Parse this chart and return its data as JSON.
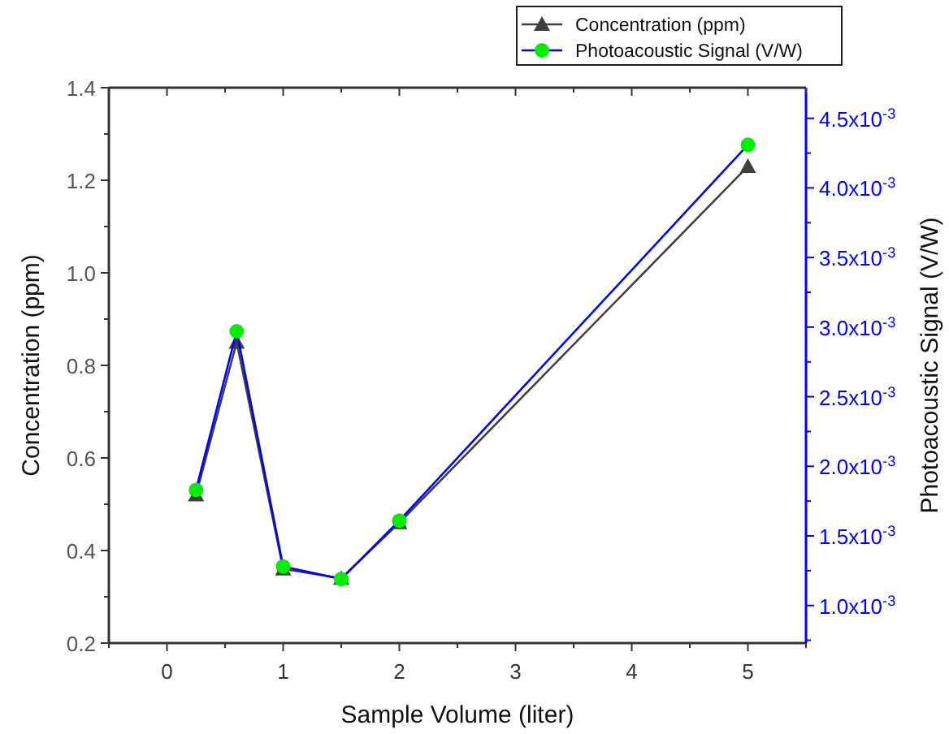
{
  "chart_data": {
    "type": "line",
    "xlabel": "Sample Volume (liter)",
    "ylabel": "Concentration (ppm)",
    "y2label": "Photoacoustic Signal (V/W)",
    "x": [
      0.25,
      0.6,
      1,
      1.5,
      2,
      5
    ],
    "series": [
      {
        "name": "Concentration (ppm)",
        "color": "#404040",
        "marker": "triangle",
        "values": [
          0.52,
          0.85,
          0.36,
          0.34,
          0.46,
          1.23
        ]
      },
      {
        "name": "Photoacoustic Signal (V/W)",
        "color": "#0000ff",
        "colors": [
          "#00ee00",
          "#00ee00",
          "#00ee00",
          "#00ee00",
          "#00ee00",
          "#00ee00"
        ],
        "marker": "circle",
        "axis": "y2",
        "values": [
          0.00183,
          0.00297,
          0.00128,
          0.00119,
          0.00161,
          0.00431
        ]
      }
    ],
    "xlim": [
      -0.5,
      5.5
    ],
    "xticks": [
      {
        "value": -0.5,
        "label": null
      },
      0,
      {
        "value": 0.5,
        "label": null
      },
      1,
      {
        "value": 1.5,
        "label": null
      },
      2,
      {
        "value": 2.5,
        "label": null
      },
      3,
      {
        "value": 3.5,
        "label": null
      },
      4,
      {
        "value": 4.5,
        "label": null
      },
      5,
      {
        "value": 5.5,
        "label": null
      }
    ],
    "ylim": [
      0.2,
      1.4
    ],
    "yticks": [
      {
        "value": 0.2,
        "label": "0.2"
      },
      {
        "value": 0.3,
        "label": null
      },
      {
        "value": 0.4,
        "label": "0.4"
      },
      {
        "value": 0.5,
        "label": null
      },
      {
        "value": 0.6,
        "label": "0.6"
      },
      {
        "value": 0.7,
        "label": null
      },
      {
        "value": 0.8,
        "label": "0.8"
      },
      {
        "value": 0.9,
        "label": null
      },
      {
        "value": 1.0,
        "label": "1.0"
      },
      {
        "value": 1.1,
        "label": null
      },
      {
        "value": 1.2,
        "label": "1.2"
      },
      {
        "value": 1.3,
        "label": null
      },
      {
        "value": 1.4,
        "label": "1.4"
      }
    ],
    "y2lim": [
      0.00073,
      0.00472
    ],
    "y2ticks": [
      {
        "value": 0.00075,
        "label": null
      },
      {
        "value": 0.001,
        "label": "1.0x10$^{-3}$"
      },
      {
        "value": 0.00125,
        "label": null
      },
      {
        "value": 0.0015,
        "label": "1.5x10$^{-3}$"
      },
      {
        "value": 0.00175,
        "label": null
      },
      {
        "value": 0.002,
        "label": "2.0x10$^{-3}$"
      },
      {
        "value": 0.00225,
        "label": null
      },
      {
        "value": 0.0025,
        "label": "2.5x10$^{-3}$"
      },
      {
        "value": 0.00275,
        "label": null
      },
      {
        "value": 0.003,
        "label": "3.0x10$^{-3}$"
      },
      {
        "value": 0.00325,
        "label": null
      },
      {
        "value": 0.0035,
        "label": "3.5x10$^{-3}$"
      },
      {
        "value": 0.00375,
        "label": null
      },
      {
        "value": 0.004,
        "label": "4.0x10$^{-3}$"
      },
      {
        "value": 0.00425,
        "label": null
      },
      {
        "value": 0.0045,
        "label": "4.5x10$^{-3}$"
      }
    ],
    "legend": "top right",
    "grid": false,
    "line_style": "solid"
  }
}
